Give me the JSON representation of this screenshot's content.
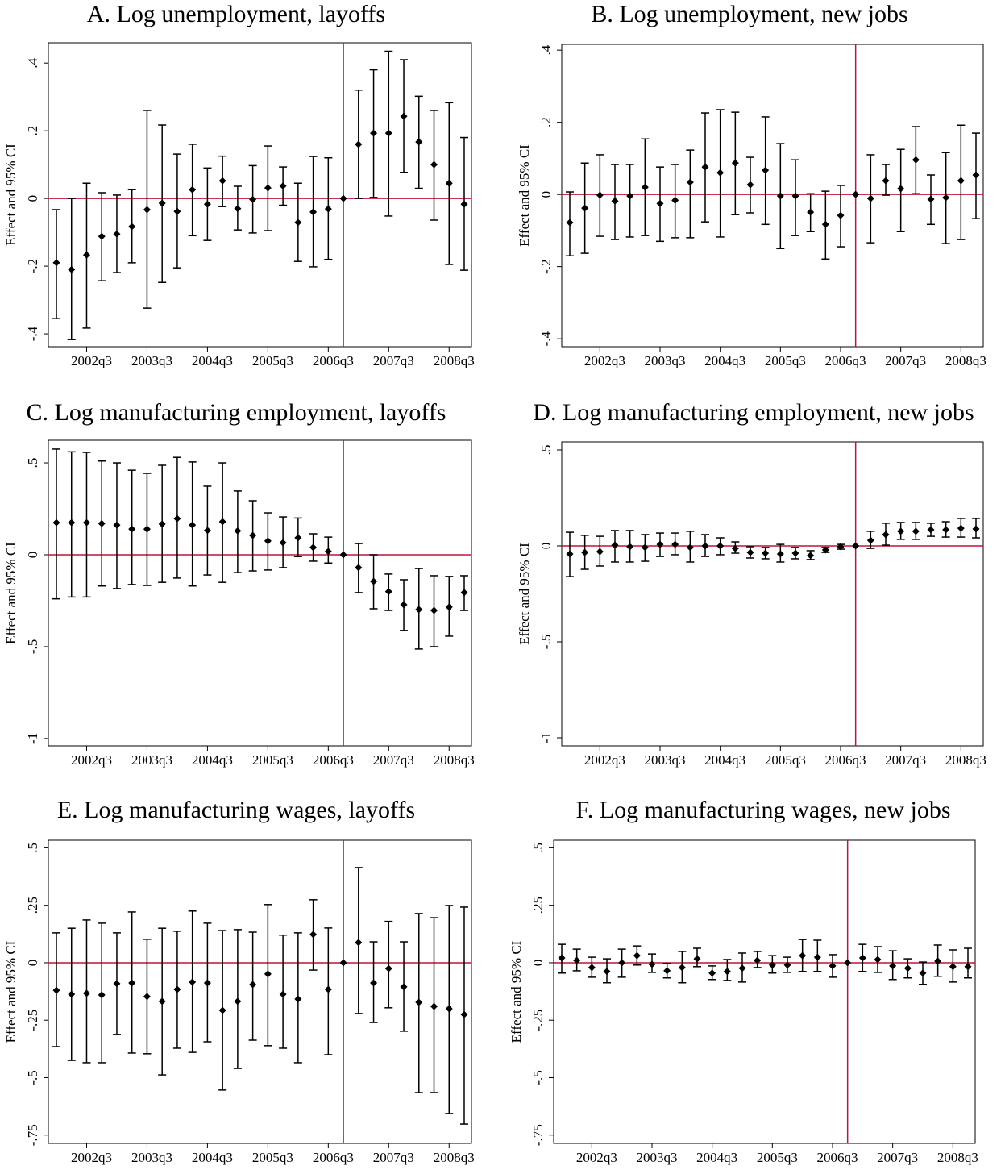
{
  "chart_data": [
    {
      "type": "errorbar",
      "title": "A. Log unemployment, layoffs",
      "ylabel": "Effect and 95% CI",
      "categories": [
        null,
        null,
        "2002q3",
        null,
        null,
        null,
        "2003q3",
        null,
        null,
        null,
        "2004q3",
        null,
        null,
        null,
        "2005q3",
        null,
        null,
        null,
        "2006q3",
        null,
        null,
        null,
        "2007q3",
        null,
        null,
        null,
        "2008q3",
        null
      ],
      "values": [
        -0.19,
        -0.21,
        -0.167,
        -0.112,
        -0.105,
        -0.083,
        -0.033,
        -0.014,
        -0.038,
        0.026,
        -0.017,
        0.052,
        -0.03,
        -0.003,
        0.031,
        0.037,
        -0.071,
        -0.04,
        -0.031,
        0,
        0.16,
        0.193,
        0.193,
        0.243,
        0.167,
        0.1,
        0.045,
        -0.017
      ],
      "lower": [
        -0.355,
        -0.417,
        -0.383,
        -0.243,
        -0.219,
        -0.19,
        -0.324,
        -0.248,
        -0.205,
        -0.11,
        -0.124,
        -0.024,
        -0.093,
        -0.102,
        -0.095,
        -0.02,
        -0.186,
        -0.202,
        -0.18,
        null,
        0,
        0.003,
        -0.052,
        0.077,
        0.03,
        -0.064,
        -0.195,
        -0.212
      ],
      "upper": [
        -0.033,
        0,
        0.045,
        0.017,
        0.01,
        0.026,
        0.26,
        0.217,
        0.131,
        0.16,
        0.09,
        0.125,
        0.036,
        0.097,
        0.155,
        0.093,
        0.045,
        0.124,
        0.12,
        null,
        0.32,
        0.38,
        0.435,
        0.41,
        0.302,
        0.26,
        0.283,
        0.18
      ],
      "color": "#000000",
      "ylim": [
        -0.438,
        0.46
      ],
      "yticks": [
        {
          "value": -0.4,
          "label": "-.4"
        },
        {
          "value": -0.2,
          "label": "-.2"
        },
        0,
        {
          "value": 0.2,
          "label": ".2"
        },
        {
          "value": 0.4,
          "label": ".4"
        }
      ],
      "vline_category": 19,
      "hline": 0,
      "line_color": "#c0143c"
    },
    {
      "type": "errorbar",
      "title": "B. Log unemployment, new jobs",
      "ylabel": "Effect and 95% CI",
      "categories": [
        null,
        null,
        "2002q3",
        null,
        null,
        null,
        "2003q3",
        null,
        null,
        null,
        "2004q3",
        null,
        null,
        null,
        "2005q3",
        null,
        null,
        null,
        "2006q3",
        null,
        null,
        null,
        "2007q3",
        null,
        null,
        null,
        "2008q3",
        null
      ],
      "values": [
        -0.078,
        -0.038,
        -0.002,
        -0.018,
        -0.004,
        0.02,
        -0.025,
        -0.016,
        0.034,
        0.076,
        0.06,
        0.087,
        0.027,
        0.067,
        -0.004,
        -0.004,
        -0.049,
        -0.083,
        -0.058,
        0,
        -0.011,
        0.038,
        0.016,
        0.096,
        -0.013,
        -0.009,
        0.038,
        0.054
      ],
      "lower": [
        -0.17,
        -0.163,
        -0.116,
        -0.125,
        -0.118,
        -0.114,
        -0.13,
        -0.12,
        -0.12,
        -0.076,
        -0.118,
        -0.056,
        -0.051,
        -0.083,
        -0.15,
        -0.114,
        -0.103,
        -0.179,
        -0.145,
        null,
        -0.134,
        -0.002,
        -0.103,
        0.002,
        -0.083,
        -0.136,
        -0.125,
        -0.067
      ],
      "upper": [
        0.007,
        0.087,
        0.11,
        0.083,
        0.083,
        0.154,
        0.076,
        0.083,
        0.123,
        0.226,
        0.235,
        0.228,
        0.103,
        0.215,
        0.141,
        0.096,
        0.002,
        0.009,
        0.025,
        null,
        0.11,
        0.083,
        0.125,
        0.188,
        0.054,
        0.116,
        0.192,
        0.17
      ],
      "color": "#000000",
      "ylim": [
        -0.422,
        0.416
      ],
      "yticks": [
        {
          "value": -0.4,
          "label": "-.4"
        },
        {
          "value": -0.2,
          "label": "-.2"
        },
        0,
        {
          "value": 0.2,
          "label": ".2"
        },
        {
          "value": 0.4,
          "label": ".4"
        }
      ],
      "vline_category": 19,
      "hline": 0,
      "line_color": "#c0143c"
    },
    {
      "type": "errorbar",
      "title": "C. Log manufacturing employment, layoffs",
      "ylabel": "Effect and 95% CI",
      "categories": [
        null,
        null,
        "2002q3",
        null,
        null,
        null,
        "2003q3",
        null,
        null,
        null,
        "2004q3",
        null,
        null,
        null,
        "2005q3",
        null,
        null,
        null,
        "2006q3",
        null,
        null,
        null,
        "2007q3",
        null,
        null,
        null,
        "2008q3",
        null
      ],
      "values": [
        0.175,
        0.175,
        0.175,
        0.17,
        0.162,
        0.14,
        0.14,
        0.167,
        0.197,
        0.162,
        0.132,
        0.18,
        0.13,
        0.105,
        0.075,
        0.066,
        0.092,
        0.04,
        0.018,
        0,
        -0.07,
        -0.145,
        -0.2,
        -0.272,
        -0.298,
        -0.303,
        -0.285,
        -0.206
      ],
      "lower": [
        -0.24,
        -0.23,
        -0.23,
        -0.17,
        -0.184,
        -0.162,
        -0.167,
        -0.15,
        -0.127,
        -0.17,
        -0.11,
        -0.15,
        -0.097,
        -0.088,
        -0.083,
        -0.07,
        -0.01,
        -0.035,
        -0.045,
        null,
        -0.206,
        -0.294,
        -0.303,
        -0.412,
        -0.513,
        -0.5,
        -0.443,
        -0.303
      ],
      "upper": [
        0.575,
        0.56,
        0.557,
        0.51,
        0.5,
        0.46,
        0.443,
        0.487,
        0.53,
        0.505,
        0.373,
        0.5,
        0.347,
        0.294,
        0.228,
        0.206,
        0.2,
        0.114,
        0.096,
        null,
        0.061,
        0,
        -0.105,
        -0.136,
        -0.075,
        -0.114,
        -0.118,
        -0.114
      ],
      "color": "#000000",
      "ylim": [
        -1.04,
        0.623
      ],
      "yticks": [
        -1,
        {
          "value": -0.5,
          "label": "-.5"
        },
        0,
        {
          "value": 0.5,
          "label": ".5"
        }
      ],
      "vline_category": 19,
      "hline": 0,
      "line_color": "#c0143c"
    },
    {
      "type": "errorbar",
      "title": "D. Log manufacturing employment, new jobs",
      "ylabel": "Effect and 95% CI",
      "categories": [
        null,
        null,
        "2002q3",
        null,
        null,
        null,
        "2003q3",
        null,
        null,
        null,
        "2004q3",
        null,
        null,
        null,
        "2005q3",
        null,
        null,
        null,
        "2006q3",
        null,
        null,
        null,
        "2007q3",
        null,
        null,
        null,
        "2008q3",
        null
      ],
      "values": [
        -0.042,
        -0.034,
        -0.03,
        0.004,
        -0.004,
        -0.008,
        0.008,
        0.008,
        -0.008,
        0,
        0,
        -0.013,
        -0.034,
        -0.038,
        -0.042,
        -0.038,
        -0.05,
        -0.021,
        -0.004,
        0,
        0.029,
        0.059,
        0.076,
        0.076,
        0.084,
        0.084,
        0.092,
        0.088
      ],
      "lower": [
        -0.16,
        -0.122,
        -0.105,
        -0.084,
        -0.084,
        -0.08,
        -0.055,
        -0.046,
        -0.084,
        -0.055,
        -0.046,
        -0.038,
        -0.063,
        -0.067,
        -0.084,
        -0.067,
        -0.071,
        -0.034,
        -0.017,
        null,
        -0.013,
        0.004,
        0.034,
        0.034,
        0.05,
        0.046,
        0.046,
        0.042
      ],
      "upper": [
        0.071,
        0.055,
        0.05,
        0.08,
        0.08,
        0.059,
        0.067,
        0.067,
        0.076,
        0.059,
        0.042,
        0.021,
        -0.004,
        -0.008,
        0.008,
        -0.008,
        -0.025,
        -0.008,
        0.008,
        null,
        0.076,
        0.118,
        0.122,
        0.122,
        0.118,
        0.126,
        0.143,
        0.143
      ],
      "color": "#000000",
      "ylim": [
        -1.042,
        0.542
      ],
      "yticks": [
        -1,
        {
          "value": -0.5,
          "label": "-.5"
        },
        0,
        {
          "value": 0.5,
          "label": ".5"
        }
      ],
      "vline_category": 19,
      "hline": 0,
      "line_color": "#c0143c"
    },
    {
      "type": "errorbar",
      "title": "E. Log manufacturing wages, layoffs",
      "ylabel": "Effect and 95% CI",
      "categories": [
        null,
        null,
        "2002q3",
        null,
        null,
        null,
        "2003q3",
        null,
        null,
        null,
        "2004q3",
        null,
        null,
        null,
        "2005q3",
        null,
        null,
        null,
        "2006q3",
        null,
        null,
        null,
        "2007q3",
        null,
        null,
        null,
        "2008q3",
        null
      ],
      "values": [
        -0.12,
        -0.137,
        -0.133,
        -0.14,
        -0.091,
        -0.088,
        -0.147,
        -0.168,
        -0.116,
        -0.084,
        -0.088,
        -0.207,
        -0.168,
        -0.095,
        -0.049,
        -0.137,
        -0.158,
        0.123,
        -0.116,
        0,
        0.088,
        -0.088,
        -0.025,
        -0.105,
        -0.172,
        -0.19,
        -0.2,
        -0.225
      ],
      "lower": [
        -0.365,
        -0.425,
        -0.435,
        -0.435,
        -0.312,
        -0.393,
        -0.396,
        -0.488,
        -0.372,
        -0.39,
        -0.344,
        -0.554,
        -0.46,
        -0.337,
        -0.361,
        -0.372,
        -0.435,
        -0.032,
        -0.4,
        null,
        -0.221,
        -0.26,
        -0.196,
        -0.298,
        -0.565,
        -0.565,
        -0.656,
        -0.702
      ],
      "upper": [
        0.13,
        0.15,
        0.186,
        0.172,
        0.13,
        0.221,
        0.102,
        0.15,
        0.137,
        0.225,
        0.172,
        0.14,
        0.144,
        0.133,
        0.253,
        0.12,
        0.13,
        0.274,
        0.151,
        null,
        0.414,
        0.091,
        0.18,
        0.091,
        0.214,
        0.196,
        0.249,
        0.242
      ],
      "color": "#000000",
      "ylim": [
        -0.786,
        0.533
      ],
      "yticks": [
        {
          "value": -0.75,
          "label": "-.75"
        },
        {
          "value": -0.5,
          "label": "-.5"
        },
        {
          "value": -0.25,
          "label": "-.25"
        },
        0,
        {
          "value": 0.25,
          "label": ".25"
        },
        {
          "value": 0.5,
          "label": ".5"
        }
      ],
      "vline_category": 19,
      "hline": 0,
      "line_color": "#c0143c"
    },
    {
      "type": "errorbar",
      "title": "F. Log manufacturing wages, new jobs",
      "ylabel": "Effect and 95% CI",
      "categories": [
        null,
        null,
        "2002q3",
        null,
        null,
        null,
        "2003q3",
        null,
        null,
        null,
        "2004q3",
        null,
        null,
        null,
        "2005q3",
        null,
        null,
        null,
        "2006q3",
        null,
        null,
        null,
        "2007q3",
        null,
        null,
        null,
        "2008q3",
        null
      ],
      "values": [
        0.021,
        0.01,
        -0.021,
        -0.038,
        0,
        0.031,
        -0.007,
        -0.035,
        -0.021,
        0.017,
        -0.045,
        -0.038,
        -0.024,
        0.01,
        -0.01,
        -0.01,
        0.031,
        0.024,
        -0.014,
        0,
        0.021,
        0.014,
        -0.014,
        -0.024,
        -0.045,
        0.007,
        -0.017,
        -0.017
      ],
      "lower": [
        -0.045,
        -0.035,
        -0.063,
        -0.087,
        -0.063,
        -0.01,
        -0.042,
        -0.066,
        -0.087,
        -0.017,
        -0.073,
        -0.077,
        -0.084,
        -0.021,
        -0.045,
        -0.042,
        -0.038,
        -0.038,
        -0.063,
        null,
        -0.038,
        -0.042,
        -0.073,
        -0.066,
        -0.094,
        -0.059,
        -0.084,
        -0.066
      ],
      "upper": [
        0.08,
        0.059,
        0.024,
        0.017,
        0.059,
        0.073,
        0.038,
        -0.003,
        0.049,
        0.063,
        -0.014,
        0.014,
        0.042,
        0.049,
        0.031,
        0.024,
        0.101,
        0.098,
        0.035,
        null,
        0.08,
        0.07,
        0.052,
        0.017,
        0.003,
        0.077,
        0.056,
        0.063
      ],
      "color": "#000000",
      "ylim": [
        -0.786,
        0.533
      ],
      "yticks": [
        {
          "value": -0.75,
          "label": "-.75"
        },
        {
          "value": -0.5,
          "label": "-.5"
        },
        {
          "value": -0.25,
          "label": "-.25"
        },
        0,
        {
          "value": 0.25,
          "label": ".25"
        },
        {
          "value": 0.5,
          "label": ".5"
        }
      ],
      "vline_category": 19,
      "hline": 0,
      "line_color": "#c0143c"
    }
  ]
}
